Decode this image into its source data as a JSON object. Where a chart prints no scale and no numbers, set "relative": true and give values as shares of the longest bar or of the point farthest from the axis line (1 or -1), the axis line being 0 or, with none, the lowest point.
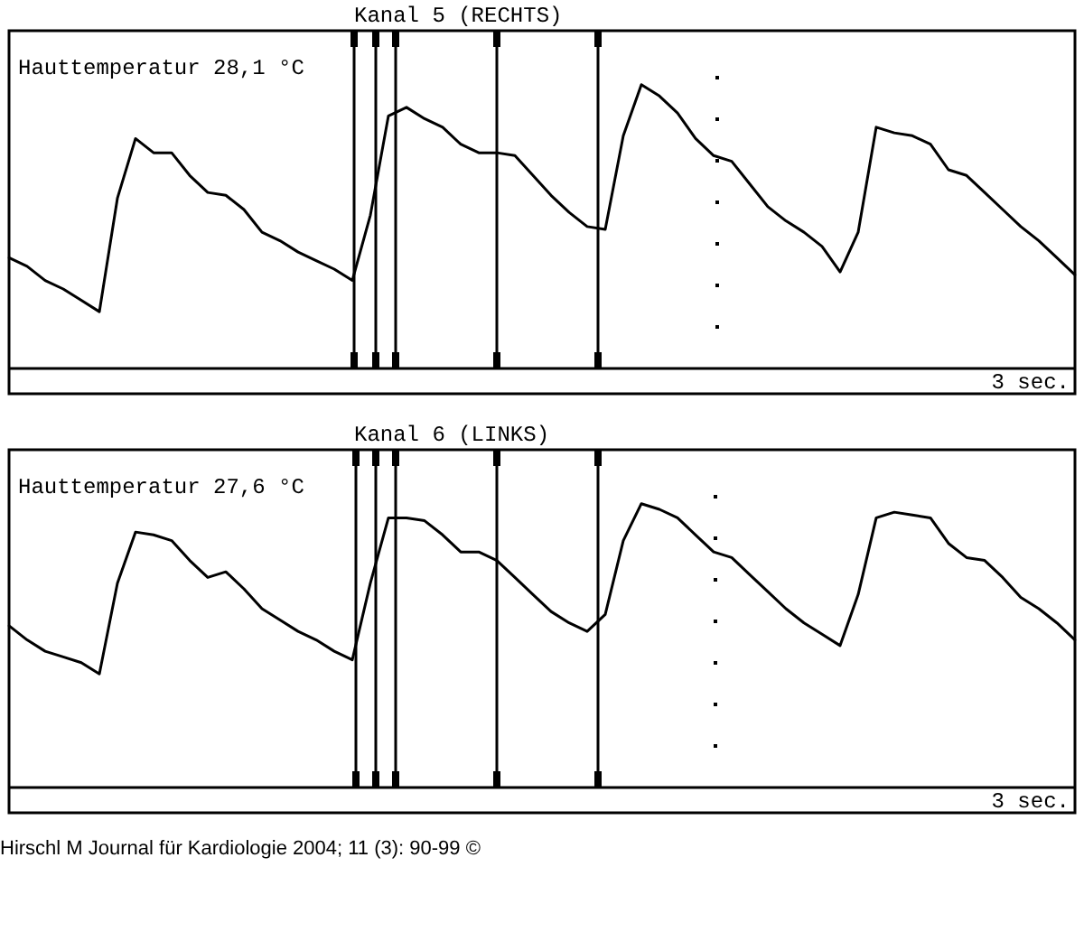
{
  "chart_data": [
    {
      "type": "line",
      "title": "Kanal 5 (RECHTS)",
      "xlabel": "3 sec.",
      "annotations": [
        "Hauttemperatur 28,1 °C"
      ],
      "relative": true,
      "marker": "none",
      "categories": [
        null,
        null,
        null,
        null,
        null,
        null,
        null,
        null,
        null,
        null,
        null,
        null,
        null,
        null,
        null,
        null,
        null,
        null,
        null,
        null,
        null,
        null,
        null,
        null,
        null,
        null,
        null,
        null,
        null,
        null,
        null,
        null,
        null,
        null,
        null,
        null,
        null,
        null,
        null,
        null,
        null,
        null,
        null,
        null,
        null,
        null,
        null,
        null,
        null,
        null,
        null,
        null,
        null,
        null,
        null,
        null,
        null,
        null,
        null,
        null
      ],
      "series": [
        {
          "color": "#000000",
          "values": [
            0.39,
            0.36,
            0.31,
            0.28,
            0.24,
            0.2,
            0.6,
            0.81,
            0.76,
            0.76,
            0.68,
            0.62,
            0.61,
            0.56,
            0.48,
            0.45,
            0.41,
            0.38,
            0.35,
            0.31,
            0.54,
            0.89,
            0.92,
            0.88,
            0.85,
            0.79,
            0.76,
            0.76,
            0.75,
            0.68,
            0.61,
            0.55,
            0.5,
            0.49,
            0.82,
            1,
            0.96,
            0.9,
            0.81,
            0.75,
            0.73,
            0.65,
            0.57,
            0.52,
            0.48,
            0.43,
            0.34,
            0.48,
            0.85,
            0.83,
            0.82,
            0.79,
            0.7,
            0.68,
            0.62,
            0.56,
            0.5,
            0.45,
            0.39,
            0.33
          ]
        }
      ],
      "legend": false
    },
    {
      "type": "line",
      "title": "Kanal 6 (LINKS)",
      "xlabel": "3 sec.",
      "annotations": [
        "Hauttemperatur 27,6 °C",
        "Hirschl M Journal für Kardiologie 2004; 11 (3): 90-99 ©"
      ],
      "relative": true,
      "marker": "none",
      "categories": [
        null,
        null,
        null,
        null,
        null,
        null,
        null,
        null,
        null,
        null,
        null,
        null,
        null,
        null,
        null,
        null,
        null,
        null,
        null,
        null,
        null,
        null,
        null,
        null,
        null,
        null,
        null,
        null,
        null,
        null,
        null,
        null,
        null,
        null,
        null,
        null,
        null,
        null,
        null,
        null,
        null,
        null,
        null,
        null,
        null,
        null,
        null,
        null,
        null,
        null,
        null,
        null,
        null,
        null,
        null,
        null,
        null,
        null,
        null,
        null
      ],
      "series": [
        {
          "color": "#000000",
          "values": [
            0.57,
            0.52,
            0.48,
            0.46,
            0.44,
            0.4,
            0.72,
            0.9,
            0.89,
            0.87,
            0.8,
            0.74,
            0.76,
            0.7,
            0.63,
            0.59,
            0.55,
            0.52,
            0.48,
            0.45,
            0.72,
            0.95,
            0.95,
            0.94,
            0.89,
            0.83,
            0.83,
            0.8,
            0.74,
            0.68,
            0.62,
            0.58,
            0.55,
            0.61,
            0.87,
            1,
            0.98,
            0.95,
            0.89,
            0.83,
            0.81,
            0.75,
            0.69,
            0.63,
            0.58,
            0.54,
            0.5,
            0.68,
            0.95,
            0.97,
            0.96,
            0.95,
            0.86,
            0.81,
            0.8,
            0.74,
            0.67,
            0.63,
            0.58,
            0.52
          ]
        }
      ],
      "legend": false
    }
  ]
}
